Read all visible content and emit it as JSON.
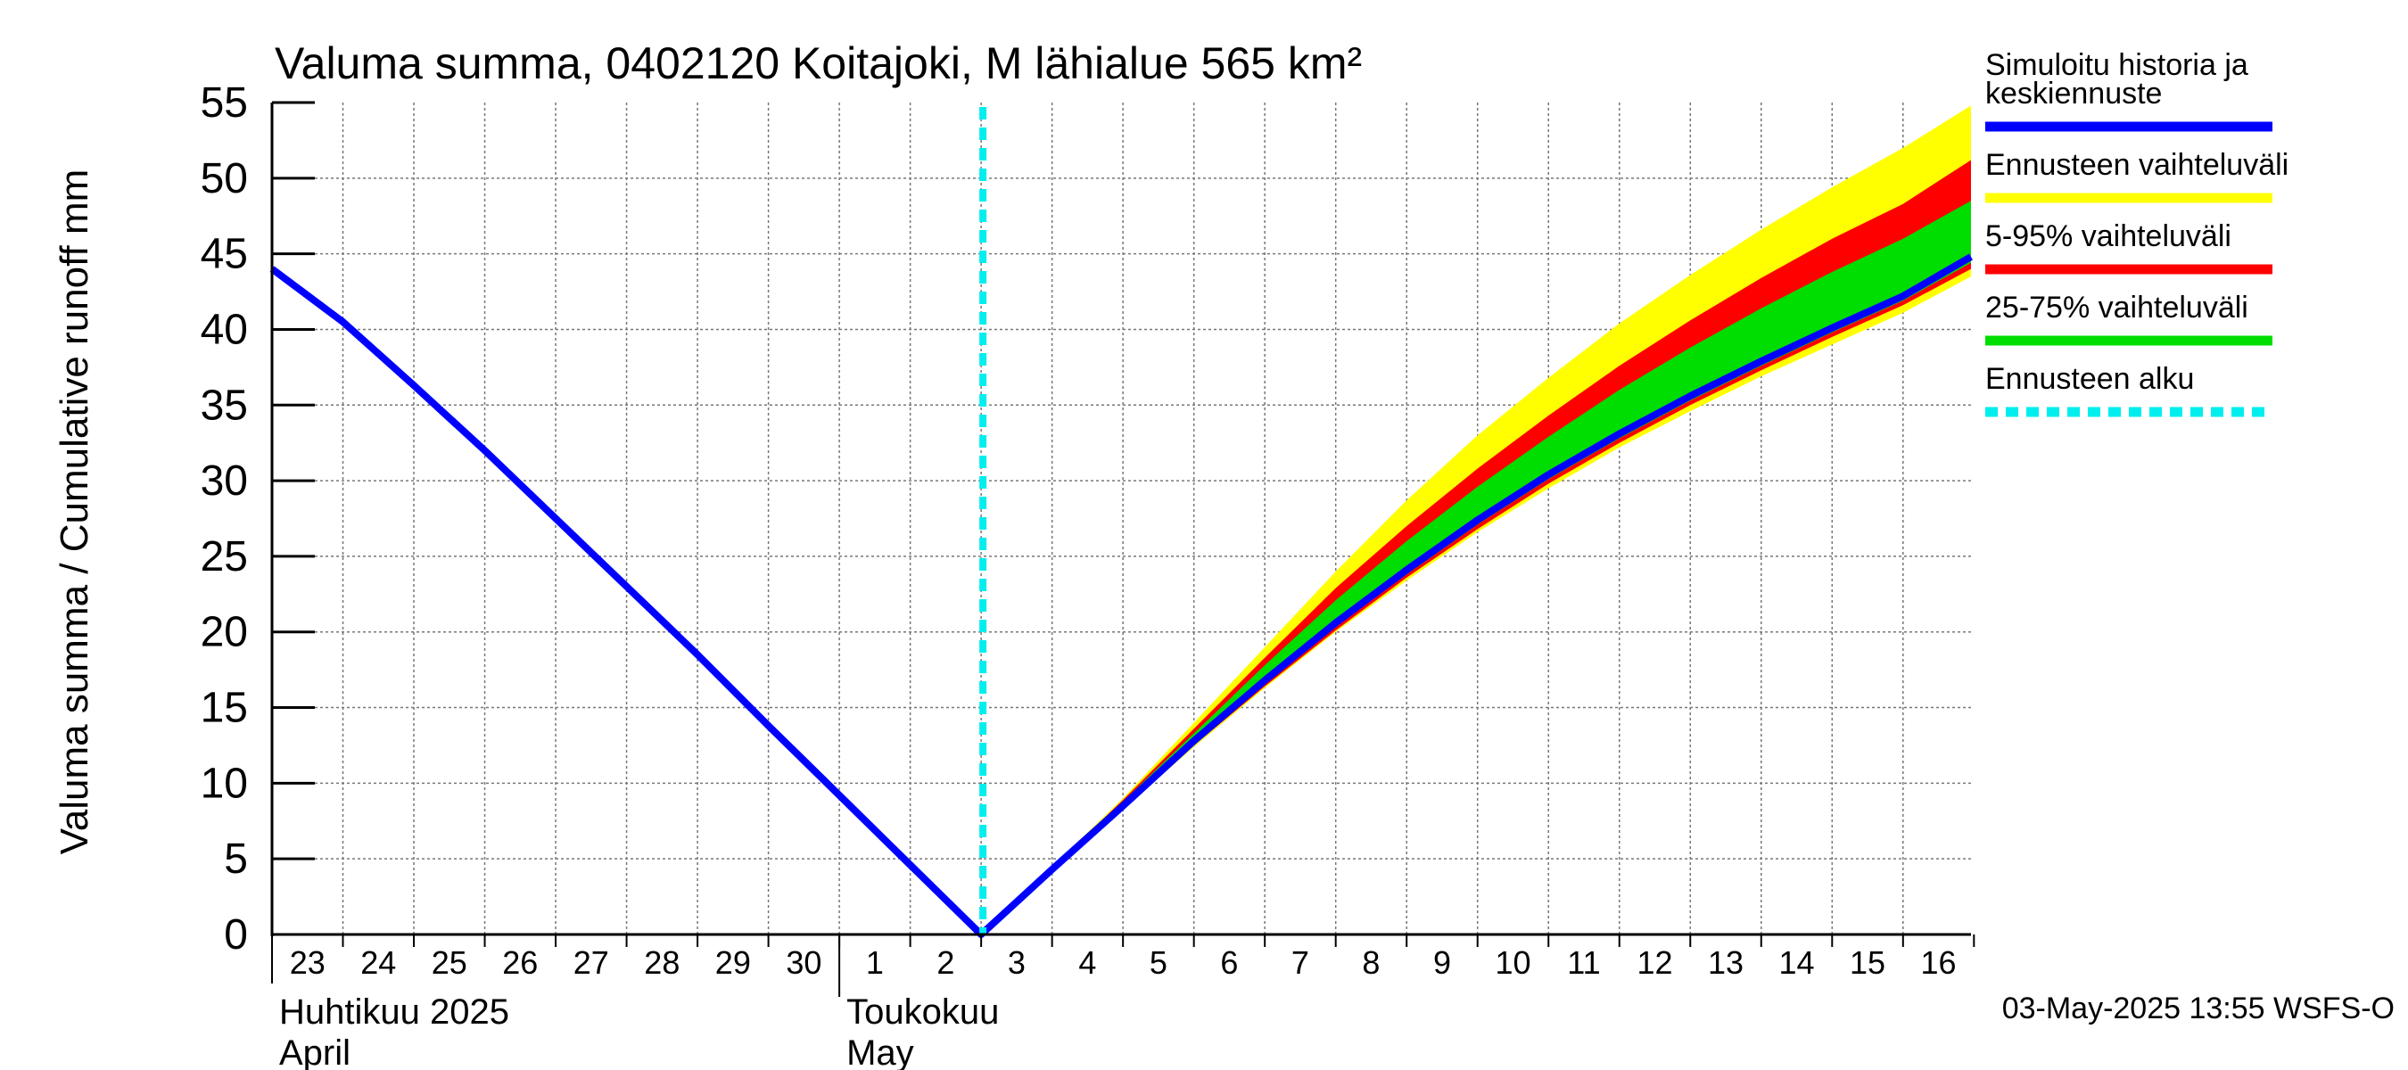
{
  "chart_data": {
    "type": "area",
    "title": "Valuma summa, 0402120 Koitajoki, M lähialue 565 km²",
    "ylabel": "Valuma summa / Cumulative runoff    mm",
    "ylim": [
      0,
      55
    ],
    "yticks": [
      "0",
      "5",
      "10",
      "15",
      "20",
      "25",
      "30",
      "35",
      "40",
      "45",
      "50",
      "55"
    ],
    "xlim": [
      "2025-04-23",
      "2025-05-16T23:00"
    ],
    "x_tick_labels": [
      "23",
      "24",
      "25",
      "26",
      "27",
      "28",
      "29",
      "30",
      "1",
      "2",
      "3",
      "4",
      "5",
      "6",
      "7",
      "8",
      "9",
      "10",
      "11",
      "12",
      "13",
      "14",
      "15",
      "16"
    ],
    "x_month_labels": [
      {
        "fi": "Huhtikuu  2025",
        "en": "April",
        "date": "2025-04-23"
      },
      {
        "fi": "Toukokuu",
        "en": "May",
        "date": "2025-05-01"
      }
    ],
    "grid": true,
    "forecast_start": "2025-05-03",
    "series": [
      {
        "name": "Simuloitu historia ja keskiennuste",
        "color": "#0000ff",
        "x": [
          "2025-04-23",
          "2025-04-24",
          "2025-04-25",
          "2025-04-26",
          "2025-04-27",
          "2025-04-28",
          "2025-04-29",
          "2025-04-30",
          "2025-05-01",
          "2025-05-02",
          "2025-05-03",
          "2025-05-04",
          "2025-05-05",
          "2025-05-06",
          "2025-05-07",
          "2025-05-08",
          "2025-05-09",
          "2025-05-10",
          "2025-05-11",
          "2025-05-12",
          "2025-05-13",
          "2025-05-14",
          "2025-05-15",
          "2025-05-16",
          "2025-05-16T23:00"
        ],
        "values": [
          44,
          40.5,
          36.3,
          32,
          27.5,
          23,
          18.5,
          13.8,
          9.2,
          4.6,
          0,
          4.3,
          8.5,
          12.8,
          16.8,
          20.6,
          24.1,
          27.4,
          30.4,
          33.1,
          35.6,
          37.9,
          40.1,
          42.2,
          44.8
        ]
      }
    ],
    "bands": [
      {
        "name": "Ennusteen vaihteluväli",
        "color": "#ffff00",
        "x": [
          "2025-05-03",
          "2025-05-04",
          "2025-05-05",
          "2025-05-06",
          "2025-05-07",
          "2025-05-08",
          "2025-05-09",
          "2025-05-10",
          "2025-05-11",
          "2025-05-12",
          "2025-05-13",
          "2025-05-14",
          "2025-05-15",
          "2025-05-16",
          "2025-05-16T23:00"
        ],
        "lower": [
          0,
          4.2,
          8.3,
          12.4,
          16.3,
          20,
          23.4,
          26.6,
          29.5,
          32.2,
          34.6,
          36.9,
          39.0,
          41.1,
          43.5
        ],
        "upper": [
          0,
          4.5,
          9.0,
          14.0,
          19.0,
          24.0,
          28.7,
          33.0,
          36.8,
          40.4,
          43.6,
          46.6,
          49.4,
          52.0,
          54.8
        ]
      },
      {
        "name": "5-95% vaihteluväli",
        "color": "#ff0000",
        "x": [
          "2025-05-03",
          "2025-05-04",
          "2025-05-05",
          "2025-05-06",
          "2025-05-07",
          "2025-05-08",
          "2025-05-09",
          "2025-05-10",
          "2025-05-11",
          "2025-05-12",
          "2025-05-13",
          "2025-05-14",
          "2025-05-15",
          "2025-05-16",
          "2025-05-16T23:00"
        ],
        "lower": [
          0,
          4.2,
          8.4,
          12.5,
          16.4,
          20.1,
          23.6,
          26.8,
          29.8,
          32.5,
          35.0,
          37.3,
          39.5,
          41.6,
          44.0
        ],
        "upper": [
          0,
          4.4,
          8.9,
          13.6,
          18.3,
          22.9,
          27.0,
          30.8,
          34.3,
          37.6,
          40.6,
          43.4,
          46.0,
          48.3,
          51.2
        ]
      },
      {
        "name": "25-75% vaihteluväli",
        "color": "#00dd00",
        "x": [
          "2025-05-03",
          "2025-05-04",
          "2025-05-05",
          "2025-05-06",
          "2025-05-07",
          "2025-05-08",
          "2025-05-09",
          "2025-05-10",
          "2025-05-11",
          "2025-05-12",
          "2025-05-13",
          "2025-05-14",
          "2025-05-15",
          "2025-05-16",
          "2025-05-16T23:00"
        ],
        "lower": [
          0,
          4.25,
          8.45,
          12.7,
          16.6,
          20.4,
          23.8,
          27.1,
          30.1,
          32.8,
          35.3,
          37.6,
          39.8,
          41.9,
          44.4
        ],
        "upper": [
          0,
          4.4,
          8.8,
          13.3,
          17.8,
          22.1,
          26.0,
          29.6,
          32.9,
          36.0,
          38.8,
          41.4,
          43.8,
          46.0,
          48.5
        ]
      }
    ],
    "legend": {
      "placement": "right",
      "entries": [
        {
          "label_line1": "Simuloitu historia ja",
          "label_line2": "keskiennuste",
          "color": "#0000ff",
          "style": "solid"
        },
        {
          "label_line1": "Ennusteen vaihteluväli",
          "color": "#ffff00",
          "style": "solid"
        },
        {
          "label_line1": "5-95% vaihteluväli",
          "color": "#ff0000",
          "style": "solid"
        },
        {
          "label_line1": "25-75% vaihteluväli",
          "color": "#00dd00",
          "style": "solid"
        },
        {
          "label_line1": "Ennusteen alku",
          "color": "#00eeee",
          "style": "dashed"
        }
      ]
    },
    "footer": "03-May-2025 13:55 WSFS-O"
  }
}
